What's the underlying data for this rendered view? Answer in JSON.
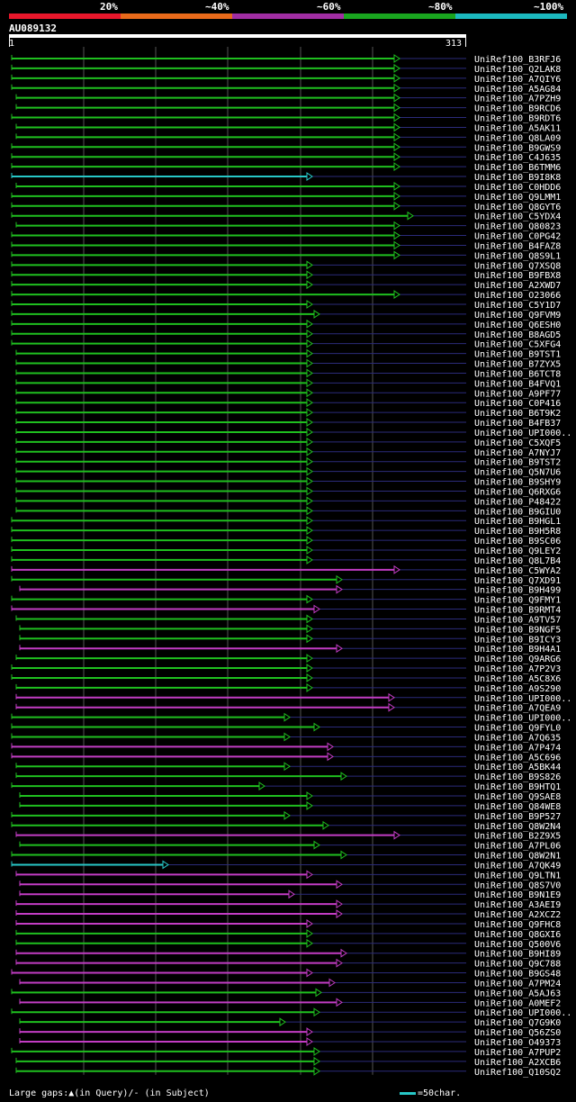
{
  "legend": [
    {
      "label": "20%",
      "color": "#e8172b"
    },
    {
      "label": "~40%",
      "color": "#e96a1a"
    },
    {
      "label": "~60%",
      "color": "#a12ea3"
    },
    {
      "label": "~80%",
      "color": "#19a51f"
    },
    {
      "label": "~100%",
      "color": "#1cb9bf"
    }
  ],
  "query": {
    "id": "AU089132",
    "start": "1",
    "end": "313"
  },
  "colors": {
    "green": "#1fbf1f",
    "magenta": "#c23cc4",
    "cyan": "#27c7c7",
    "grid": "#555555",
    "axis": "#2b2b7a"
  },
  "hits": [
    {
      "label": "UniRef100_B3RFJ6",
      "c": "green"
    },
    {
      "label": "UniRef100_Q2LAK8",
      "c": "green"
    },
    {
      "label": "UniRef100_A7QIY6",
      "c": "green"
    },
    {
      "label": "UniRef100_A5AG84",
      "c": "green"
    },
    {
      "label": "UniRef100_A7PZH9",
      "c": "green"
    },
    {
      "label": "UniRef100_B9RCD6",
      "c": "green"
    },
    {
      "label": "UniRef100_B9RDT6",
      "c": "green"
    },
    {
      "label": "UniRef100_A5AK11",
      "c": "green"
    },
    {
      "label": "UniRef100_Q8LA09",
      "c": "green"
    },
    {
      "label": "UniRef100_B9GWS9",
      "c": "green"
    },
    {
      "label": "UniRef100_C4J635",
      "c": "green"
    },
    {
      "label": "UniRef100_B6TMM6",
      "c": "green"
    },
    {
      "label": "UniRef100_B9I8K8",
      "c": "cyan"
    },
    {
      "label": "UniRef100_C0HDD6",
      "c": "green"
    },
    {
      "label": "UniRef100_Q9LMM1",
      "c": "green"
    },
    {
      "label": "UniRef100_Q8GYT6",
      "c": "green"
    },
    {
      "label": "UniRef100_C5YDX4",
      "c": "green"
    },
    {
      "label": "UniRef100_Q80823",
      "c": "green"
    },
    {
      "label": "UniRef100_C0PG42",
      "c": "green"
    },
    {
      "label": "UniRef100_B4FAZ8",
      "c": "green"
    },
    {
      "label": "UniRef100_Q8S9L1",
      "c": "green"
    },
    {
      "label": "UniRef100_Q7XSQ8",
      "c": "green"
    },
    {
      "label": "UniRef100_B9FBX8",
      "c": "green"
    },
    {
      "label": "UniRef100_A2XWD7",
      "c": "green"
    },
    {
      "label": "UniRef100_O23066",
      "c": "green"
    },
    {
      "label": "UniRef100_C5Y1D7",
      "c": "green"
    },
    {
      "label": "UniRef100_Q9FVM9",
      "c": "green"
    },
    {
      "label": "UniRef100_Q6ESH0",
      "c": "green"
    },
    {
      "label": "UniRef100_B8AGD5",
      "c": "green"
    },
    {
      "label": "UniRef100_C5XFG4",
      "c": "green"
    },
    {
      "label": "UniRef100_B9TST1",
      "c": "green"
    },
    {
      "label": "UniRef100_B7ZYX5",
      "c": "green"
    },
    {
      "label": "UniRef100_B6TCT8",
      "c": "green"
    },
    {
      "label": "UniRef100_B4FVQ1",
      "c": "green"
    },
    {
      "label": "UniRef100_A9PF77",
      "c": "green"
    },
    {
      "label": "UniRef100_C0P416",
      "c": "green"
    },
    {
      "label": "UniRef100_B6T9K2",
      "c": "green"
    },
    {
      "label": "UniRef100_B4FB37",
      "c": "green"
    },
    {
      "label": "UniRef100_UPI000..",
      "c": "green"
    },
    {
      "label": "UniRef100_C5XQF5",
      "c": "green"
    },
    {
      "label": "UniRef100_A7NYJ7",
      "c": "green"
    },
    {
      "label": "UniRef100_B9TST2",
      "c": "green"
    },
    {
      "label": "UniRef100_Q5N7U6",
      "c": "green"
    },
    {
      "label": "UniRef100_B9SHY9",
      "c": "green"
    },
    {
      "label": "UniRef100_Q6RXG6",
      "c": "green"
    },
    {
      "label": "UniRef100_P48422",
      "c": "green"
    },
    {
      "label": "UniRef100_B9GIU0",
      "c": "green"
    },
    {
      "label": "UniRef100_B9HGL1",
      "c": "green"
    },
    {
      "label": "UniRef100_B9H5R8",
      "c": "green"
    },
    {
      "label": "UniRef100_B9SC06",
      "c": "green"
    },
    {
      "label": "UniRef100_Q9LEY2",
      "c": "green"
    },
    {
      "label": "UniRef100_Q8L7B4",
      "c": "green"
    },
    {
      "label": "UniRef100_C5WYA2",
      "c": "magenta"
    },
    {
      "label": "UniRef100_Q7XD91",
      "c": "green"
    },
    {
      "label": "UniRef100_B9H499",
      "c": "magenta"
    },
    {
      "label": "UniRef100_Q9FMY1",
      "c": "green"
    },
    {
      "label": "UniRef100_B9RMT4",
      "c": "magenta"
    },
    {
      "label": "UniRef100_A9TV57",
      "c": "green"
    },
    {
      "label": "UniRef100_B9NGF5",
      "c": "green"
    },
    {
      "label": "UniRef100_B9ICY3",
      "c": "green"
    },
    {
      "label": "UniRef100_B9H4A1",
      "c": "magenta"
    },
    {
      "label": "UniRef100_Q9ARG6",
      "c": "green"
    },
    {
      "label": "UniRef100_A7P2V3",
      "c": "green"
    },
    {
      "label": "UniRef100_A5C8X6",
      "c": "green"
    },
    {
      "label": "UniRef100_A9S290",
      "c": "green"
    },
    {
      "label": "UniRef100_UPI000..",
      "c": "magenta"
    },
    {
      "label": "UniRef100_A7QEA9",
      "c": "magenta"
    },
    {
      "label": "UniRef100_UPI000..",
      "c": "green"
    },
    {
      "label": "UniRef100_Q9FYL0",
      "c": "green"
    },
    {
      "label": "UniRef100_A7Q635",
      "c": "green"
    },
    {
      "label": "UniRef100_A7P474",
      "c": "magenta"
    },
    {
      "label": "UniRef100_A5C696",
      "c": "magenta"
    },
    {
      "label": "UniRef100_A5BK44",
      "c": "green"
    },
    {
      "label": "UniRef100_B9S826",
      "c": "green"
    },
    {
      "label": "UniRef100_B9HTQ1",
      "c": "green"
    },
    {
      "label": "UniRef100_Q9SAE8",
      "c": "green"
    },
    {
      "label": "UniRef100_Q84WE8",
      "c": "green"
    },
    {
      "label": "UniRef100_B9P527",
      "c": "green"
    },
    {
      "label": "UniRef100_Q8W2N4",
      "c": "green"
    },
    {
      "label": "UniRef100_B2Z9X5",
      "c": "magenta"
    },
    {
      "label": "UniRef100_A7PL06",
      "c": "green"
    },
    {
      "label": "UniRef100_Q8W2N1",
      "c": "green"
    },
    {
      "label": "UniRef100_A7QK49",
      "c": "cyan"
    },
    {
      "label": "UniRef100_Q9LTN1",
      "c": "magenta"
    },
    {
      "label": "UniRef100_Q8S7V0",
      "c": "magenta"
    },
    {
      "label": "UniRef100_B9N1E9",
      "c": "magenta"
    },
    {
      "label": "UniRef100_A3AEI9",
      "c": "magenta"
    },
    {
      "label": "UniRef100_A2XCZ2",
      "c": "magenta"
    },
    {
      "label": "UniRef100_Q9FHC8",
      "c": "magenta"
    },
    {
      "label": "UniRef100_Q8GXI6",
      "c": "green"
    },
    {
      "label": "UniRef100_Q500V6",
      "c": "green"
    },
    {
      "label": "UniRef100_B9HI89",
      "c": "magenta"
    },
    {
      "label": "UniRef100_Q9C788",
      "c": "magenta"
    },
    {
      "label": "UniRef100_B9GS48",
      "c": "magenta"
    },
    {
      "label": "UniRef100_A7PM24",
      "c": "magenta"
    },
    {
      "label": "UniRef100_A5AJ63",
      "c": "green"
    },
    {
      "label": "UniRef100_A0MEF2",
      "c": "magenta"
    },
    {
      "label": "UniRef100_UPI000..",
      "c": "green"
    },
    {
      "label": "UniRef100_Q7G9K0",
      "c": "green"
    },
    {
      "label": "UniRef100_Q56ZS0",
      "c": "magenta"
    },
    {
      "label": "UniRef100_O49373",
      "c": "magenta"
    },
    {
      "label": "UniRef100_A7PUP2",
      "c": "green"
    },
    {
      "label": "UniRef100_A2XCB6",
      "c": "green"
    },
    {
      "label": "UniRef100_Q10SQ2",
      "c": "green"
    }
  ],
  "footer": {
    "gaps": "Large gaps:▲(in Query)/- (in Subject)",
    "scale": "=50char."
  }
}
